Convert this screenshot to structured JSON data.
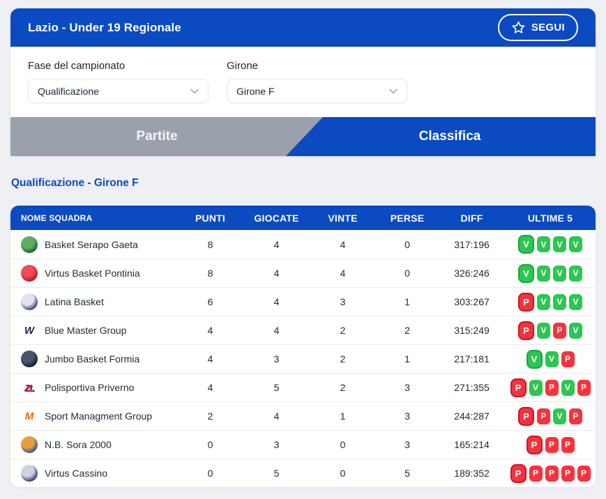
{
  "header": {
    "title": "Lazio - Under 19 Regionale",
    "follow_label": "SEGUI"
  },
  "filters": {
    "phase": {
      "label": "Fase del campionato",
      "value": "Qualificazione"
    },
    "girone": {
      "label": "Girone",
      "value": "Girone F"
    }
  },
  "tabs": {
    "partite": "Partite",
    "classifica": "Classifica",
    "active": "Classifica"
  },
  "section_title": "Qualificazione - Girone F",
  "table": {
    "columns": [
      "NOME SQUADRA",
      "PUNTI",
      "GIOCATE",
      "VINTE",
      "PERSE",
      "DIFF",
      "ULTIME 5"
    ],
    "rows": [
      {
        "team": "Basket Serapo Gaeta",
        "punti": "8",
        "giocate": "4",
        "vinte": "4",
        "perse": "0",
        "diff": "317:196",
        "ultime5": [
          "V",
          "V",
          "V",
          "V"
        ],
        "logo": {
          "type": "circle",
          "colors": [
            "#5fae63",
            "#1d5a2a"
          ]
        }
      },
      {
        "team": "Virtus Basket Pontinia",
        "punti": "8",
        "giocate": "4",
        "vinte": "4",
        "perse": "0",
        "diff": "326:246",
        "ultime5": [
          "V",
          "V",
          "V",
          "V"
        ],
        "logo": {
          "type": "circle",
          "colors": [
            "#ef4d56",
            "#b01220"
          ]
        }
      },
      {
        "team": "Latina Basket",
        "punti": "6",
        "giocate": "4",
        "vinte": "3",
        "perse": "1",
        "diff": "303:267",
        "ultime5": [
          "P",
          "V",
          "V",
          "V"
        ],
        "logo": {
          "type": "circle",
          "colors": [
            "#dfe5ef",
            "#23336e"
          ]
        }
      },
      {
        "team": "Blue Master Group",
        "punti": "4",
        "giocate": "4",
        "vinte": "2",
        "perse": "2",
        "diff": "315:249",
        "ultime5": [
          "P",
          "V",
          "P",
          "V"
        ],
        "logo": {
          "type": "text",
          "text": "W",
          "colors": [
            "#1b2a6b",
            "#1b2a6b"
          ]
        }
      },
      {
        "team": "Jumbo Basket Formia",
        "punti": "4",
        "giocate": "3",
        "vinte": "2",
        "perse": "1",
        "diff": "217:181",
        "ultime5": [
          "V",
          "V",
          "P"
        ],
        "logo": {
          "type": "circle",
          "colors": [
            "#4a5568",
            "#11151c"
          ]
        }
      },
      {
        "team": "Polisportiva Priverno",
        "punti": "4",
        "giocate": "5",
        "vinte": "2",
        "perse": "3",
        "diff": "271:355",
        "ultime5": [
          "P",
          "V",
          "P",
          "V",
          "P"
        ],
        "logo": {
          "type": "text",
          "text": "ZL",
          "colors": [
            "#d42a33",
            "#27348b"
          ]
        }
      },
      {
        "team": "Sport Managment Group",
        "punti": "2",
        "giocate": "4",
        "vinte": "1",
        "perse": "3",
        "diff": "244:287",
        "ultime5": [
          "P",
          "P",
          "V",
          "P"
        ],
        "logo": {
          "type": "text",
          "text": "M",
          "colors": [
            "#e8660d",
            "#e8660d"
          ]
        }
      },
      {
        "team": "N.B. Sora 2000",
        "punti": "0",
        "giocate": "3",
        "vinte": "0",
        "perse": "3",
        "diff": "165:214",
        "ultime5": [
          "P",
          "P",
          "P"
        ],
        "logo": {
          "type": "circle",
          "colors": [
            "#e8a13a",
            "#2b4ea0"
          ]
        }
      },
      {
        "team": "Virtus Cassino",
        "punti": "0",
        "giocate": "5",
        "vinte": "0",
        "perse": "5",
        "diff": "189:352",
        "ultime5": [
          "P",
          "P",
          "P",
          "P",
          "P"
        ],
        "logo": {
          "type": "circle",
          "colors": [
            "#cdd3e0",
            "#232d5e"
          ]
        }
      }
    ]
  },
  "icons": {
    "star": "star-icon",
    "chevron": "chevron-down-icon"
  },
  "colors": {
    "primary": "#0b4ac0",
    "tab_inactive": "#9aa1ac",
    "win": "#2dc653",
    "win_ring": "#13a93e",
    "loss": "#f5333f",
    "loss_ring": "#cf1320",
    "page_bg": "#eef0f4",
    "text_dark": "#1e2735",
    "row_line": "#e9ecf1",
    "border": "#e4e7ec"
  }
}
